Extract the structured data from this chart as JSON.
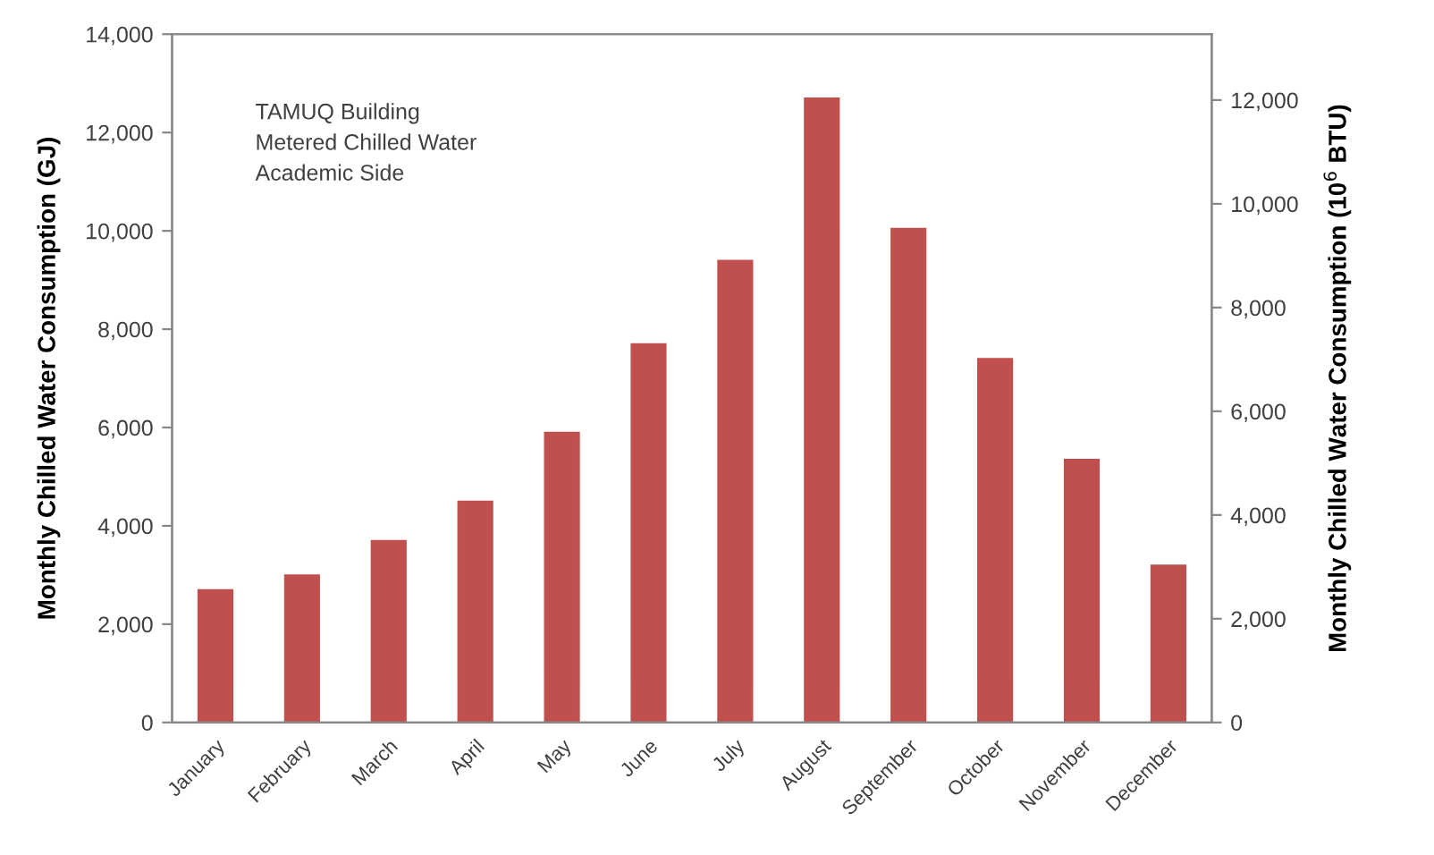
{
  "chart_data": {
    "type": "bar",
    "categories": [
      "January",
      "February",
      "March",
      "April",
      "May",
      "June",
      "July",
      "August",
      "September",
      "October",
      "November",
      "December"
    ],
    "values": [
      2700,
      3000,
      3700,
      4500,
      5900,
      7700,
      9400,
      12700,
      10050,
      7400,
      5350,
      3200
    ],
    "color": "#c0504d",
    "ylabel": "Monthly Chilled Water Consumption (GJ)",
    "y2label": "Monthly Chilled Water Consumption (10$^{6}$ BTU)",
    "ylim": [
      0,
      14000
    ],
    "yticks": [
      {
        "value": 0,
        "label": "0"
      },
      {
        "value": 2000,
        "label": "2,000"
      },
      {
        "value": 4000,
        "label": "4,000"
      },
      {
        "value": 6000,
        "label": "6,000"
      },
      {
        "value": 8000,
        "label": "8,000"
      },
      {
        "value": 10000,
        "label": "10,000"
      },
      {
        "value": 12000,
        "label": "12,000"
      },
      {
        "value": 14000,
        "label": "14,000"
      }
    ],
    "y2lim": [
      0,
      13270
    ],
    "y2ticks": [
      {
        "value": 0,
        "label": "0"
      },
      {
        "value": 2000,
        "label": "2,000"
      },
      {
        "value": 4000,
        "label": "4,000"
      },
      {
        "value": 6000,
        "label": "6,000"
      },
      {
        "value": 8000,
        "label": "8,000"
      },
      {
        "value": 10000,
        "label": "10,000"
      },
      {
        "value": 12000,
        "label": "12,000"
      }
    ],
    "annotations": [
      "TAMUQ Building\nMetered Chilled Water\nAcademic Side"
    ],
    "grid": false,
    "legend": false
  }
}
